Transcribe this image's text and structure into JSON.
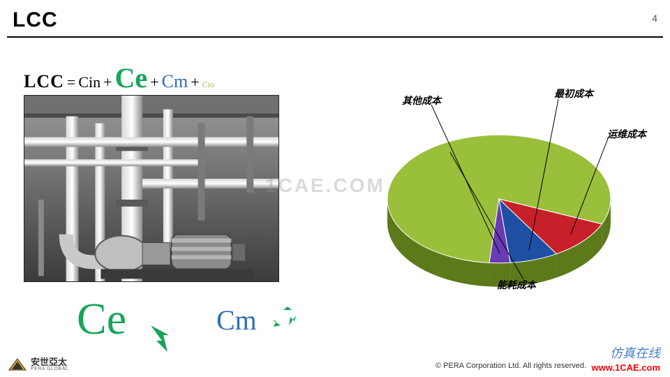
{
  "header": {
    "title": "LCC",
    "title_fontsize": 30,
    "title_color": "#000000",
    "page_number": "4",
    "rule_color": "#000000"
  },
  "formula": {
    "lcc": "LCC",
    "eq": "=",
    "cin": "Cin",
    "plus": "+",
    "ce": "Ce",
    "ce_color": "#18a558",
    "cm": "Cm",
    "cm_color": "#2d6fb5",
    "cio": "Cio"
  },
  "callouts": {
    "ce": "Ce",
    "ce_color": "#18a558",
    "cm": "Cm",
    "cm_color": "#2d6fb5"
  },
  "photo": {
    "caption": "industrial pump room (grayscale photo)",
    "border_color": "#222222"
  },
  "watermarks": {
    "center": "1CAE.COM",
    "corner_text": "仿真在线",
    "corner_url": "www.1CAE.com",
    "url_color": "#ff0000"
  },
  "pie": {
    "type": "pie-3d",
    "background_color": "#ffffff",
    "base_color": "#5c7a1a",
    "tilt_deg": 55,
    "slices": [
      {
        "label": "能耗成本",
        "value": 80,
        "color": "#99bf3b"
      },
      {
        "label": "运维成本",
        "value": 10,
        "color": "#c8202a"
      },
      {
        "label": "最初成本",
        "value": 7,
        "color": "#1e4fa3"
      },
      {
        "label": "其他成本",
        "value": 3,
        "color": "#6b3bb5"
      }
    ],
    "label_font": "SimSun",
    "label_fontsize": 14,
    "label_color": "#000000",
    "leader_color": "#000000"
  },
  "footer": {
    "brand": "安世亞太",
    "brand_sub": "PERA GLOBAL",
    "logo_color": "#d9a51a",
    "copyright": "©   PERA Corporation Ltd. All rights reserved.",
    "bar_colors": [
      "#d9a51a",
      "#555555"
    ]
  }
}
